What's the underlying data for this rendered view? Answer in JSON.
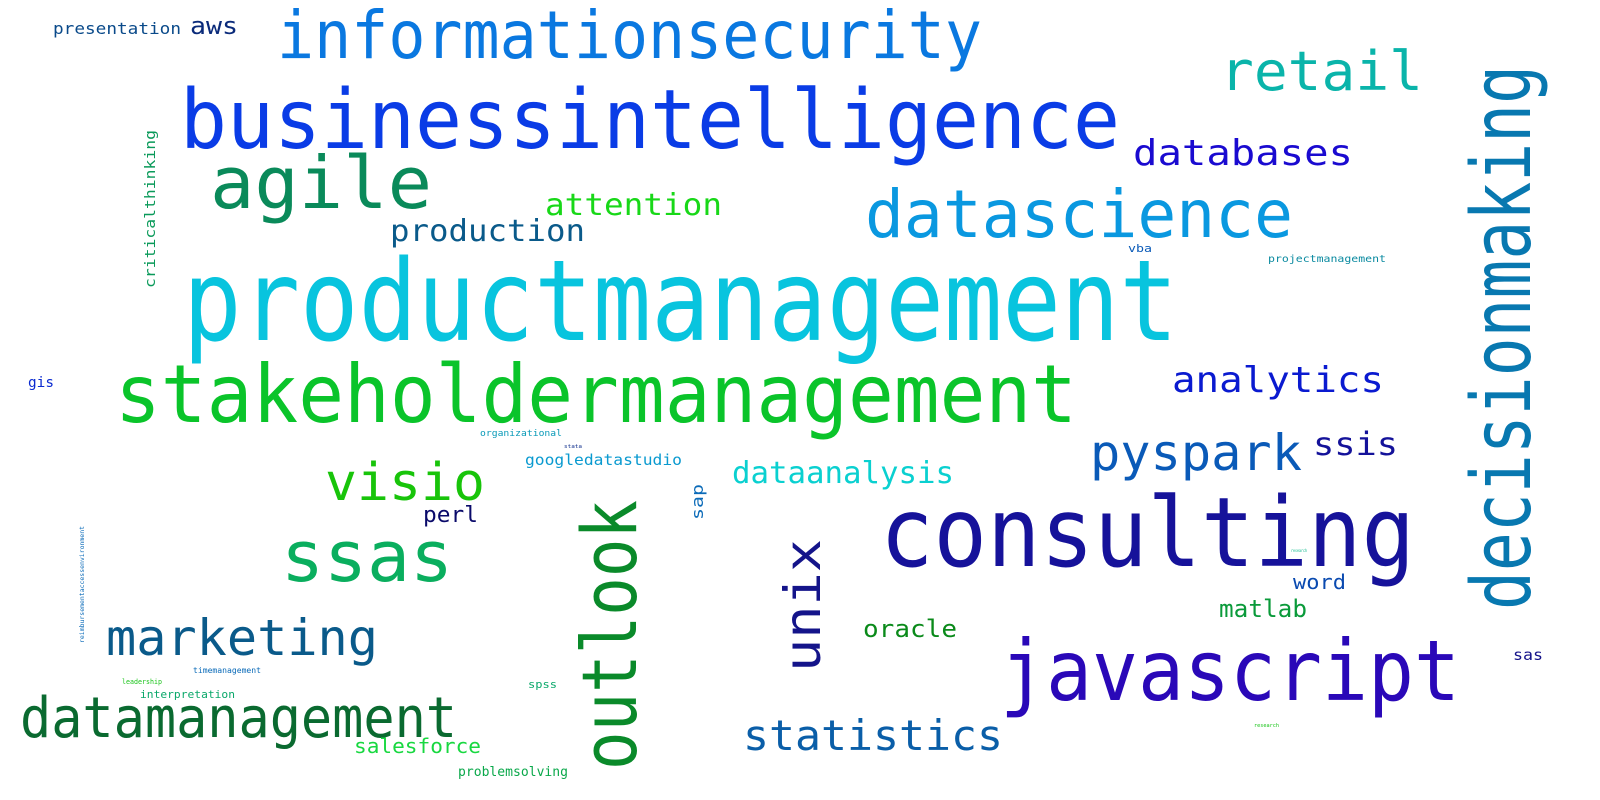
{
  "words": [
    {
      "text": "productmanagement",
      "color": "#08c4de"
    },
    {
      "text": "businessintelligence",
      "color": "#0a3ce6"
    },
    {
      "text": "stakeholdermanagement",
      "color": "#0ac42a"
    },
    {
      "text": "informationsecurity",
      "color": "#0a78e0"
    },
    {
      "text": "consulting",
      "color": "#16129a"
    },
    {
      "text": "javascript",
      "color": "#2a08b8"
    },
    {
      "text": "decisionmaking",
      "color": "#0878b0"
    },
    {
      "text": "datascience",
      "color": "#0a98e0"
    },
    {
      "text": "agile",
      "color": "#0a8a5a"
    },
    {
      "text": "ssas",
      "color": "#0aae5e"
    },
    {
      "text": "outlook",
      "color": "#0a8a2a"
    },
    {
      "text": "datamanagement",
      "color": "#0a6a30"
    },
    {
      "text": "marketing",
      "color": "#0a5a8a"
    },
    {
      "text": "retail",
      "color": "#0ab4aa"
    },
    {
      "text": "visio",
      "color": "#18c40a"
    },
    {
      "text": "unix",
      "color": "#14148a"
    },
    {
      "text": "pyspark",
      "color": "#0a5ab8"
    },
    {
      "text": "statistics",
      "color": "#0a5ea8"
    },
    {
      "text": "analytics",
      "color": "#0a1ad0"
    },
    {
      "text": "databases",
      "color": "#1a0ad0"
    },
    {
      "text": "attention",
      "color": "#18d818"
    },
    {
      "text": "production",
      "color": "#0a5a8a"
    },
    {
      "text": "dataanalysis",
      "color": "#0ad0d0"
    },
    {
      "text": "ssis",
      "color": "#14129a"
    },
    {
      "text": "oracle",
      "color": "#0a8a1a"
    },
    {
      "text": "matlab",
      "color": "#0a9a3a"
    },
    {
      "text": "word",
      "color": "#0a4ab0"
    },
    {
      "text": "salesforce",
      "color": "#18d840"
    },
    {
      "text": "aws",
      "color": "#0a2a7a"
    },
    {
      "text": "perl",
      "color": "#0a0a6a"
    },
    {
      "text": "presentation",
      "color": "#0a4a8a"
    },
    {
      "text": "googledatastudio",
      "color": "#0a9ad0"
    },
    {
      "text": "criticalthinking",
      "color": "#0a9a5a"
    },
    {
      "text": "problemsolving",
      "color": "#0aa84a"
    },
    {
      "text": "sap",
      "color": "#0a6ab8"
    },
    {
      "text": "gis",
      "color": "#0a2ad0"
    },
    {
      "text": "sas",
      "color": "#14128a"
    },
    {
      "text": "vba",
      "color": "#0a5ab8"
    },
    {
      "text": "projectmanagement",
      "color": "#0a8aa0"
    },
    {
      "text": "spss",
      "color": "#0aa86a"
    },
    {
      "text": "interpretation",
      "color": "#0aa86a"
    },
    {
      "text": "organizational",
      "color": "#0a9ab8"
    },
    {
      "text": "timemanagement",
      "color": "#0a6ab8"
    },
    {
      "text": "leadership",
      "color": "#18c418"
    },
    {
      "text": "reimbursementaccessenvironment",
      "color": "#0a6ab8"
    },
    {
      "text": "stata",
      "color": "#0a2a8a"
    },
    {
      "text": "research",
      "color": "#18c418"
    },
    {
      "text": "research",
      "color": "#0ab88a"
    }
  ]
}
